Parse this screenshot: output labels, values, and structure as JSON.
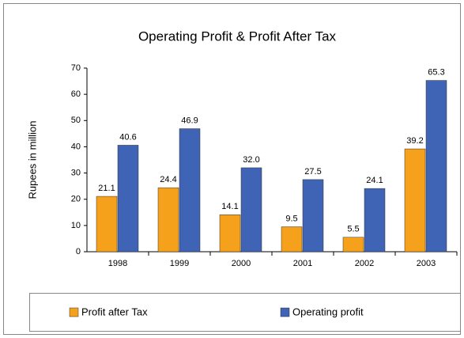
{
  "chart_data": {
    "type": "bar",
    "title": "Operating Profit & Profit After Tax",
    "ylabel": "Rupees in million",
    "categories": [
      "1998",
      "1999",
      "2000",
      "2001",
      "2002",
      "2003"
    ],
    "series": [
      {
        "name": "Profit after Tax",
        "color": "#f5a11b",
        "values": [
          21.1,
          24.4,
          14.1,
          9.5,
          5.5,
          39.2
        ]
      },
      {
        "name": "Operating profit",
        "color": "#3f63b5",
        "values": [
          40.6,
          46.9,
          32.0,
          27.5,
          24.1,
          65.3
        ],
        "value_labels": [
          "40.6",
          "46.9",
          "32.0",
          "27.5",
          "24.1",
          "65.3"
        ]
      }
    ],
    "ylim": [
      0,
      70
    ],
    "yticks": [
      0,
      10,
      20,
      30,
      40,
      50,
      60,
      70
    ],
    "grid": false,
    "legend": "bottom"
  }
}
